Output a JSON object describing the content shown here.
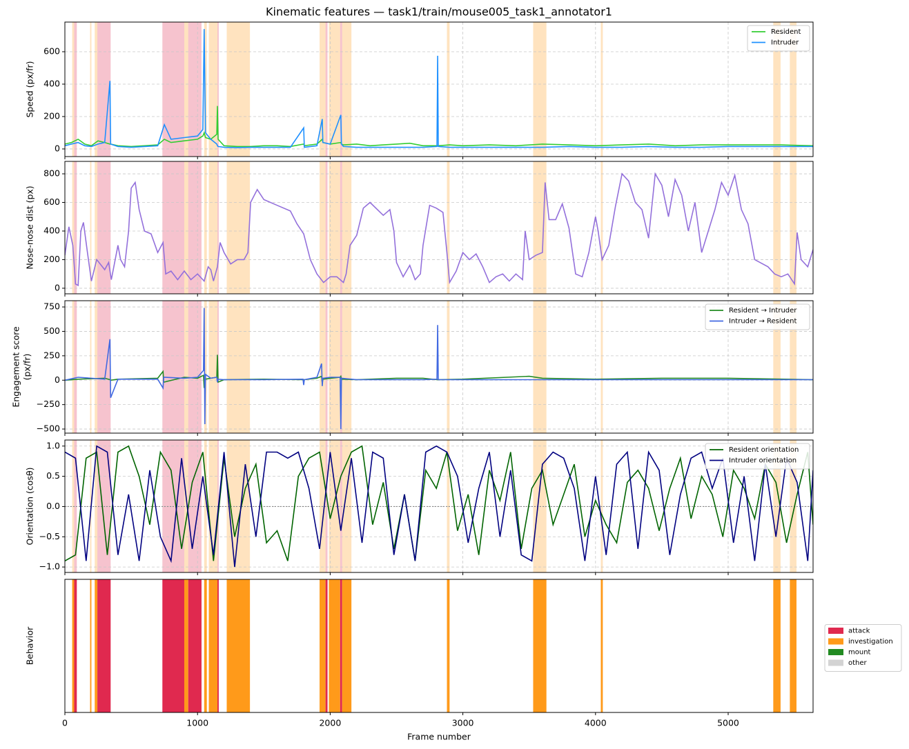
{
  "title": "Kinematic features — task1/train/mouse005_task1_annotator1",
  "chart_data": [
    {
      "type": "line",
      "ylabel": [
        "Speed (px/fr)"
      ],
      "xlim": [
        0,
        5640
      ],
      "xticks": [
        0,
        1000,
        2000,
        3000,
        4000,
        5000
      ],
      "ylim": [
        -47,
        783
      ],
      "yticks": [
        0,
        200,
        400,
        600
      ],
      "grid": true,
      "legend": "upper right",
      "x": [
        0,
        50,
        100,
        150,
        200,
        250,
        300,
        340,
        345,
        400,
        500,
        600,
        700,
        750,
        800,
        900,
        1000,
        1040,
        1050,
        1060,
        1100,
        1145,
        1150,
        1155,
        1200,
        1300,
        1400,
        1500,
        1600,
        1700,
        1800,
        1805,
        1900,
        1940,
        1945,
        2000,
        2080,
        2085,
        2100,
        2200,
        2300,
        2400,
        2500,
        2600,
        2700,
        2805,
        2810,
        2815,
        2900,
        3000,
        3200,
        3400,
        3600,
        3800,
        4000,
        4200,
        4400,
        4600,
        4800,
        5000,
        5200,
        5400,
        5640
      ],
      "series": [
        {
          "name": "Resident",
          "color": "#32cd32",
          "values": [
            30,
            40,
            60,
            30,
            20,
            50,
            40,
            30,
            30,
            20,
            15,
            20,
            25,
            60,
            40,
            50,
            60,
            80,
            100,
            70,
            60,
            90,
            265,
            60,
            20,
            15,
            15,
            20,
            20,
            15,
            30,
            20,
            30,
            60,
            40,
            30,
            40,
            30,
            25,
            30,
            20,
            25,
            30,
            35,
            20,
            20,
            20,
            20,
            25,
            20,
            25,
            20,
            30,
            25,
            20,
            25,
            30,
            20,
            25,
            25,
            25,
            25,
            20
          ]
        },
        {
          "name": "Intruder",
          "color": "#1e90ff",
          "values": [
            20,
            30,
            40,
            20,
            15,
            30,
            40,
            420,
            30,
            15,
            10,
            15,
            20,
            150,
            60,
            70,
            80,
            120,
            740,
            100,
            60,
            30,
            20,
            15,
            10,
            8,
            10,
            10,
            10,
            10,
            130,
            10,
            20,
            185,
            40,
            30,
            210,
            30,
            15,
            10,
            10,
            10,
            10,
            10,
            10,
            15,
            575,
            15,
            10,
            10,
            10,
            10,
            10,
            15,
            10,
            10,
            15,
            10,
            10,
            15,
            15,
            15,
            15
          ]
        }
      ]
    },
    {
      "type": "line",
      "ylabel": [
        "Nose-nose dist (px)"
      ],
      "xlim": [
        0,
        5640
      ],
      "xticks": [
        0,
        1000,
        2000,
        3000,
        4000,
        5000
      ],
      "ylim": [
        -39,
        887
      ],
      "yticks": [
        0,
        200,
        400,
        600,
        800
      ],
      "grid": true,
      "x": [
        0,
        30,
        60,
        80,
        100,
        120,
        140,
        170,
        200,
        240,
        300,
        330,
        350,
        400,
        420,
        450,
        480,
        500,
        530,
        560,
        600,
        650,
        700,
        740,
        760,
        800,
        850,
        900,
        950,
        1000,
        1050,
        1080,
        1100,
        1120,
        1150,
        1170,
        1200,
        1250,
        1300,
        1350,
        1380,
        1400,
        1450,
        1500,
        1600,
        1700,
        1750,
        1800,
        1850,
        1900,
        1950,
        2000,
        2050,
        2100,
        2120,
        2150,
        2200,
        2250,
        2300,
        2400,
        2450,
        2480,
        2500,
        2550,
        2600,
        2640,
        2680,
        2700,
        2750,
        2800,
        2850,
        2880,
        2900,
        2950,
        3000,
        3050,
        3100,
        3150,
        3200,
        3250,
        3300,
        3350,
        3400,
        3450,
        3470,
        3500,
        3550,
        3600,
        3620,
        3650,
        3700,
        3750,
        3800,
        3850,
        3900,
        3950,
        4000,
        4020,
        4050,
        4100,
        4150,
        4200,
        4250,
        4300,
        4350,
        4400,
        4450,
        4500,
        4550,
        4600,
        4650,
        4700,
        4750,
        4800,
        4850,
        4900,
        4950,
        5000,
        5050,
        5100,
        5150,
        5200,
        5300,
        5350,
        5400,
        5450,
        5500,
        5520,
        5550,
        5600,
        5640
      ],
      "series": [
        {
          "color": "#9370db",
          "values": [
            230,
            430,
            300,
            30,
            20,
            400,
            460,
            250,
            50,
            200,
            130,
            180,
            60,
            300,
            200,
            150,
            400,
            700,
            740,
            550,
            400,
            380,
            250,
            320,
            100,
            120,
            60,
            120,
            60,
            100,
            50,
            150,
            130,
            50,
            150,
            320,
            250,
            170,
            200,
            200,
            250,
            600,
            690,
            620,
            580,
            540,
            450,
            380,
            200,
            100,
            40,
            80,
            80,
            40,
            100,
            300,
            370,
            560,
            600,
            510,
            550,
            400,
            180,
            80,
            160,
            60,
            100,
            300,
            580,
            560,
            530,
            250,
            40,
            120,
            250,
            200,
            240,
            150,
            40,
            80,
            100,
            50,
            100,
            60,
            400,
            200,
            230,
            250,
            740,
            480,
            480,
            590,
            420,
            100,
            80,
            250,
            500,
            400,
            200,
            300,
            570,
            800,
            750,
            600,
            550,
            350,
            800,
            720,
            500,
            760,
            650,
            400,
            600,
            250,
            400,
            550,
            740,
            650,
            790,
            550,
            450,
            200,
            150,
            100,
            80,
            100,
            30,
            390,
            200,
            150,
            270
          ]
        }
      ]
    },
    {
      "type": "line",
      "ylabel": [
        "Engagement score",
        "(px/fr)"
      ],
      "xlim": [
        0,
        5640
      ],
      "xticks": [
        0,
        1000,
        2000,
        3000,
        4000,
        5000
      ],
      "ylim": [
        -542,
        814
      ],
      "yticks": [
        {
          "value": -500,
          "label": "−500"
        },
        {
          "value": -250,
          "label": "−250"
        },
        0,
        250,
        500,
        750
      ],
      "grid": true,
      "legend": "upper right",
      "x": [
        0,
        100,
        300,
        340,
        345,
        400,
        700,
        740,
        745,
        900,
        1000,
        1045,
        1050,
        1055,
        1060,
        1100,
        1145,
        1150,
        1155,
        1200,
        1500,
        1795,
        1800,
        1805,
        1900,
        1935,
        1940,
        1945,
        2000,
        2075,
        2080,
        2085,
        2200,
        2500,
        2700,
        2805,
        2810,
        2815,
        3000,
        3500,
        3600,
        4000,
        4500,
        5000,
        5640
      ],
      "series": [
        {
          "name": "Resident → Intruder",
          "color": "#228b22",
          "values": [
            0,
            10,
            20,
            5,
            0,
            10,
            20,
            90,
            -20,
            30,
            20,
            50,
            -80,
            30,
            10,
            20,
            30,
            260,
            -20,
            5,
            10,
            5,
            5,
            5,
            20,
            40,
            -30,
            10,
            20,
            30,
            40,
            10,
            5,
            20,
            20,
            5,
            5,
            5,
            10,
            40,
            20,
            10,
            20,
            20,
            5
          ]
        },
        {
          "name": "Intruder → Resident",
          "color": "#4169e1",
          "values": [
            0,
            30,
            10,
            420,
            -180,
            10,
            10,
            -80,
            30,
            20,
            30,
            100,
            740,
            -450,
            60,
            20,
            30,
            -20,
            10,
            5,
            5,
            10,
            -50,
            5,
            30,
            170,
            -60,
            20,
            30,
            30,
            -500,
            20,
            5,
            5,
            5,
            10,
            565,
            5,
            5,
            5,
            5,
            5,
            5,
            5,
            5
          ]
        }
      ]
    },
    {
      "type": "line",
      "ylabel": [
        "Orientation (cosθ)"
      ],
      "xlim": [
        0,
        5640
      ],
      "xticks": [
        0,
        1000,
        2000,
        3000,
        4000,
        5000
      ],
      "ylim": [
        -1.09,
        1.1
      ],
      "yticks": [
        {
          "value": -1,
          "label": "−1.0"
        },
        {
          "value": -0.5,
          "label": "−0.5"
        },
        {
          "value": 0,
          "label": "0.0"
        },
        0.5,
        {
          "value": 1,
          "label": "1.0"
        }
      ],
      "grid": true,
      "legend": "upper right",
      "refline": 0,
      "x": [
        0,
        80,
        160,
        240,
        320,
        400,
        480,
        560,
        640,
        720,
        800,
        880,
        960,
        1040,
        1120,
        1200,
        1280,
        1360,
        1440,
        1520,
        1600,
        1680,
        1760,
        1840,
        1920,
        2000,
        2080,
        2160,
        2240,
        2320,
        2400,
        2480,
        2560,
        2640,
        2720,
        2800,
        2880,
        2960,
        3040,
        3120,
        3200,
        3280,
        3360,
        3440,
        3520,
        3600,
        3680,
        3760,
        3840,
        3920,
        4000,
        4080,
        4160,
        4240,
        4320,
        4400,
        4480,
        4560,
        4640,
        4720,
        4800,
        4880,
        4960,
        5040,
        5120,
        5200,
        5280,
        5360,
        5440,
        5520,
        5600,
        5640
      ],
      "series": [
        {
          "name": "Resident orientation",
          "color": "#006400",
          "values": [
            -0.9,
            -0.8,
            0.8,
            0.9,
            -0.8,
            0.9,
            1.0,
            0.5,
            -0.3,
            0.9,
            0.6,
            -0.7,
            0.4,
            0.9,
            -0.9,
            0.8,
            -0.5,
            0.3,
            0.7,
            -0.6,
            -0.4,
            -0.9,
            0.5,
            0.8,
            0.9,
            -0.2,
            0.5,
            0.9,
            1.0,
            -0.3,
            0.4,
            -0.7,
            0.2,
            -0.9,
            0.6,
            0.3,
            0.9,
            -0.4,
            0.2,
            -0.8,
            0.6,
            0.1,
            0.9,
            -0.7,
            0.3,
            0.6,
            -0.3,
            0.2,
            0.7,
            -0.5,
            0.1,
            -0.3,
            -0.6,
            0.4,
            0.6,
            0.3,
            -0.4,
            0.3,
            0.8,
            -0.2,
            0.5,
            0.2,
            -0.5,
            0.6,
            0.3,
            -0.2,
            0.7,
            0.4,
            -0.6,
            0.2,
            0.9,
            -0.3
          ]
        },
        {
          "name": "Intruder orientation",
          "color": "#000080",
          "values": [
            0.9,
            0.8,
            -0.9,
            1.0,
            0.9,
            -0.8,
            0.2,
            -0.9,
            0.6,
            -0.5,
            -0.9,
            0.8,
            -0.7,
            0.5,
            -0.8,
            0.9,
            -1.0,
            0.7,
            -0.5,
            0.9,
            0.9,
            0.8,
            0.9,
            0.3,
            -0.7,
            0.9,
            -0.4,
            0.8,
            -0.6,
            0.9,
            0.8,
            -0.8,
            0.2,
            -0.9,
            0.9,
            1.0,
            0.9,
            0.5,
            -0.6,
            0.3,
            0.9,
            -0.5,
            0.6,
            -0.8,
            -0.9,
            0.7,
            0.9,
            0.8,
            0.3,
            -0.9,
            0.5,
            -0.8,
            0.7,
            0.9,
            -0.7,
            0.9,
            0.6,
            -0.8,
            0.2,
            0.8,
            0.9,
            0.3,
            0.8,
            -0.6,
            0.5,
            -0.9,
            0.7,
            -0.5,
            0.8,
            0.4,
            -0.9,
            0.6
          ]
        }
      ]
    },
    {
      "type": "timeline",
      "ylabel": [
        "Behavior"
      ],
      "xlabel": "Frame number",
      "xlim": [
        0,
        5640
      ],
      "xticks": [
        0,
        1000,
        2000,
        3000,
        4000,
        5000
      ],
      "legend": "outside right",
      "legend_items": [
        {
          "name": "attack",
          "color": "#e0294f"
        },
        {
          "name": "investigation",
          "color": "#ff9a1a"
        },
        {
          "name": "mount",
          "color": "#228b22"
        },
        {
          "name": "other",
          "color": "#d3d3d3"
        }
      ],
      "segments": [
        {
          "start": 55,
          "end": 70,
          "behavior": "investigation"
        },
        {
          "start": 70,
          "end": 90,
          "behavior": "attack"
        },
        {
          "start": 190,
          "end": 200,
          "behavior": "investigation"
        },
        {
          "start": 225,
          "end": 245,
          "behavior": "investigation"
        },
        {
          "start": 245,
          "end": 345,
          "behavior": "attack"
        },
        {
          "start": 735,
          "end": 900,
          "behavior": "attack"
        },
        {
          "start": 900,
          "end": 930,
          "behavior": "investigation"
        },
        {
          "start": 930,
          "end": 1030,
          "behavior": "attack"
        },
        {
          "start": 1050,
          "end": 1070,
          "behavior": "investigation"
        },
        {
          "start": 1085,
          "end": 1150,
          "behavior": "investigation"
        },
        {
          "start": 1150,
          "end": 1160,
          "behavior": "attack"
        },
        {
          "start": 1220,
          "end": 1395,
          "behavior": "investigation"
        },
        {
          "start": 1920,
          "end": 1965,
          "behavior": "investigation"
        },
        {
          "start": 1965,
          "end": 1980,
          "behavior": "attack"
        },
        {
          "start": 1990,
          "end": 2075,
          "behavior": "investigation"
        },
        {
          "start": 2075,
          "end": 2090,
          "behavior": "attack"
        },
        {
          "start": 2090,
          "end": 2160,
          "behavior": "investigation"
        },
        {
          "start": 2880,
          "end": 2900,
          "behavior": "investigation"
        },
        {
          "start": 3530,
          "end": 3630,
          "behavior": "investigation"
        },
        {
          "start": 4040,
          "end": 4055,
          "behavior": "investigation"
        },
        {
          "start": 5340,
          "end": 5395,
          "behavior": "investigation"
        },
        {
          "start": 5465,
          "end": 5515,
          "behavior": "investigation"
        }
      ]
    }
  ]
}
